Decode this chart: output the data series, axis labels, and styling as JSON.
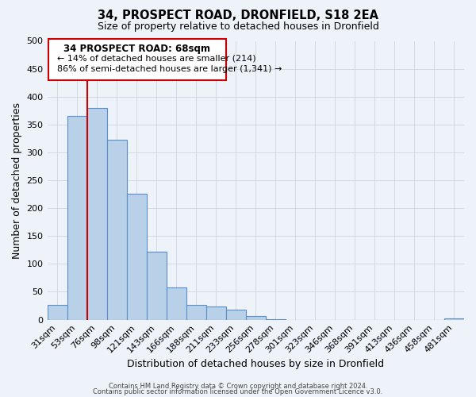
{
  "title": "34, PROSPECT ROAD, DRONFIELD, S18 2EA",
  "subtitle": "Size of property relative to detached houses in Dronfield",
  "xlabel": "Distribution of detached houses by size in Dronfield",
  "ylabel": "Number of detached properties",
  "bar_labels": [
    "31sqm",
    "53sqm",
    "76sqm",
    "98sqm",
    "121sqm",
    "143sqm",
    "166sqm",
    "188sqm",
    "211sqm",
    "233sqm",
    "256sqm",
    "278sqm",
    "301sqm",
    "323sqm",
    "346sqm",
    "368sqm",
    "391sqm",
    "413sqm",
    "436sqm",
    "458sqm",
    "481sqm"
  ],
  "bar_values": [
    27,
    365,
    380,
    323,
    226,
    122,
    58,
    27,
    23,
    18,
    7,
    1,
    0,
    0,
    0,
    0,
    0,
    0,
    0,
    0,
    2
  ],
  "bar_color": "#b8d0e8",
  "bar_edge_color": "#5b8fc9",
  "ylim": [
    0,
    500
  ],
  "yticks": [
    0,
    50,
    100,
    150,
    200,
    250,
    300,
    350,
    400,
    450,
    500
  ],
  "red_line_x": 1.5,
  "annotation_title": "34 PROSPECT ROAD: 68sqm",
  "annotation_line1": "← 14% of detached houses are smaller (214)",
  "annotation_line2": "86% of semi-detached houses are larger (1,341) →",
  "annotation_box_color": "#ffffff",
  "annotation_box_edge": "#cc0000",
  "red_line_color": "#cc0000",
  "footer1": "Contains HM Land Registry data © Crown copyright and database right 2024.",
  "footer2": "Contains public sector information licensed under the Open Government Licence v3.0.",
  "background_color": "#eef2f9",
  "grid_color": "#c8d0de"
}
